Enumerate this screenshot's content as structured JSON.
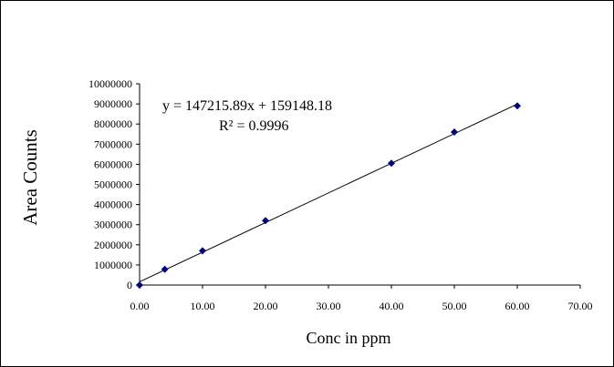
{
  "chart_data": {
    "type": "scatter",
    "xlabel": "Conc in ppm",
    "ylabel": "Area Counts",
    "xlim": [
      0,
      70
    ],
    "ylim": [
      0,
      10000000
    ],
    "x_ticks": [
      "0.00",
      "10.00",
      "20.00",
      "30.00",
      "40.00",
      "50.00",
      "60.00",
      "70.00"
    ],
    "y_ticks": [
      "0",
      "1000000",
      "2000000",
      "3000000",
      "4000000",
      "5000000",
      "6000000",
      "7000000",
      "8000000",
      "9000000",
      "10000000"
    ],
    "grid": false,
    "legend": "none",
    "series": [
      {
        "marker": "diamond",
        "color": "#000080",
        "points": [
          {
            "x": 0,
            "y": 0
          },
          {
            "x": 4,
            "y": 780000
          },
          {
            "x": 10,
            "y": 1700000
          },
          {
            "x": 20,
            "y": 3200000
          },
          {
            "x": 40,
            "y": 6050000
          },
          {
            "x": 50,
            "y": 7600000
          },
          {
            "x": 60,
            "y": 8900000
          }
        ]
      }
    ],
    "trendline": {
      "type": "linear",
      "slope": 147215.89,
      "intercept": 159148.18,
      "x_range": [
        0,
        60
      ],
      "color": "#000000"
    },
    "annotations": {
      "equation": "y = 147215.89x + 159148.18",
      "r_squared": "R² = 0.9996"
    }
  }
}
